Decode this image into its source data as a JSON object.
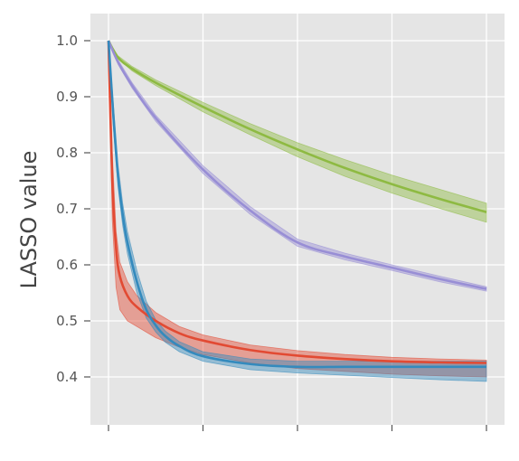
{
  "chart_data": {
    "type": "line",
    "title": "",
    "xlabel": "",
    "ylabel": "LASSO value",
    "style": "ggplot",
    "grid": true,
    "xlim": [
      0,
      4
    ],
    "ylim": [
      0.31,
      1.05
    ],
    "yticks": [
      "0.4",
      "0.5",
      "0.6",
      "0.7",
      "0.8",
      "0.9",
      "1.0"
    ],
    "xticks": [
      "",
      "",
      "",
      "",
      ""
    ],
    "series": [
      {
        "color": "#8EBA42",
        "x": [
          0,
          0.1,
          0.25,
          0.5,
          1.0,
          1.5,
          2.0,
          2.5,
          3.0,
          3.5,
          4.0
        ],
        "y": [
          1.0,
          0.97,
          0.95,
          0.925,
          0.882,
          0.842,
          0.806,
          0.773,
          0.744,
          0.718,
          0.694
        ],
        "lower": [
          1.0,
          0.968,
          0.946,
          0.92,
          0.873,
          0.832,
          0.793,
          0.758,
          0.728,
          0.701,
          0.676
        ],
        "upper": [
          1.0,
          0.973,
          0.954,
          0.93,
          0.89,
          0.852,
          0.818,
          0.788,
          0.76,
          0.735,
          0.71
        ]
      },
      {
        "color": "#988ED5",
        "x": [
          0,
          0.1,
          0.25,
          0.5,
          1.0,
          1.5,
          2.0,
          2.5,
          3.0,
          3.5,
          4.0
        ],
        "y": [
          1.0,
          0.962,
          0.92,
          0.862,
          0.77,
          0.697,
          0.64,
          0.615,
          0.595,
          0.575,
          0.557
        ],
        "lower": [
          1.0,
          0.958,
          0.915,
          0.856,
          0.763,
          0.69,
          0.633,
          0.609,
          0.59,
          0.57,
          0.553
        ],
        "upper": [
          1.0,
          0.966,
          0.925,
          0.867,
          0.777,
          0.704,
          0.646,
          0.621,
          0.6,
          0.58,
          0.561
        ]
      },
      {
        "color": "#E24A33",
        "x": [
          0,
          0.04,
          0.08,
          0.12,
          0.2,
          0.3,
          0.5,
          0.75,
          1.0,
          1.5,
          2.0,
          2.5,
          3.0,
          3.5,
          4.0
        ],
        "y": [
          1.0,
          0.75,
          0.63,
          0.58,
          0.545,
          0.525,
          0.5,
          0.478,
          0.465,
          0.448,
          0.438,
          0.432,
          0.428,
          0.426,
          0.425
        ],
        "lower": [
          1.0,
          0.68,
          0.56,
          0.52,
          0.5,
          0.49,
          0.47,
          0.453,
          0.44,
          0.425,
          0.415,
          0.41,
          0.405,
          0.402,
          0.4
        ],
        "upper": [
          1.0,
          0.8,
          0.66,
          0.605,
          0.57,
          0.545,
          0.515,
          0.49,
          0.475,
          0.457,
          0.447,
          0.44,
          0.435,
          0.432,
          0.43
        ]
      },
      {
        "color": "#348ABD",
        "x": [
          0,
          0.05,
          0.1,
          0.15,
          0.2,
          0.3,
          0.4,
          0.5,
          0.6,
          0.75,
          1.0,
          1.5,
          2.0,
          2.5,
          3.0,
          3.5,
          4.0
        ],
        "y": [
          1.0,
          0.87,
          0.76,
          0.69,
          0.64,
          0.57,
          0.52,
          0.492,
          0.473,
          0.455,
          0.437,
          0.423,
          0.418,
          0.418,
          0.418,
          0.418,
          0.418
        ],
        "lower": [
          1.0,
          0.85,
          0.74,
          0.67,
          0.62,
          0.55,
          0.505,
          0.48,
          0.462,
          0.445,
          0.428,
          0.413,
          0.407,
          0.403,
          0.399,
          0.395,
          0.392
        ],
        "upper": [
          1.0,
          0.89,
          0.78,
          0.71,
          0.66,
          0.59,
          0.535,
          0.502,
          0.482,
          0.463,
          0.445,
          0.432,
          0.428,
          0.428,
          0.428,
          0.428,
          0.428
        ]
      }
    ]
  }
}
